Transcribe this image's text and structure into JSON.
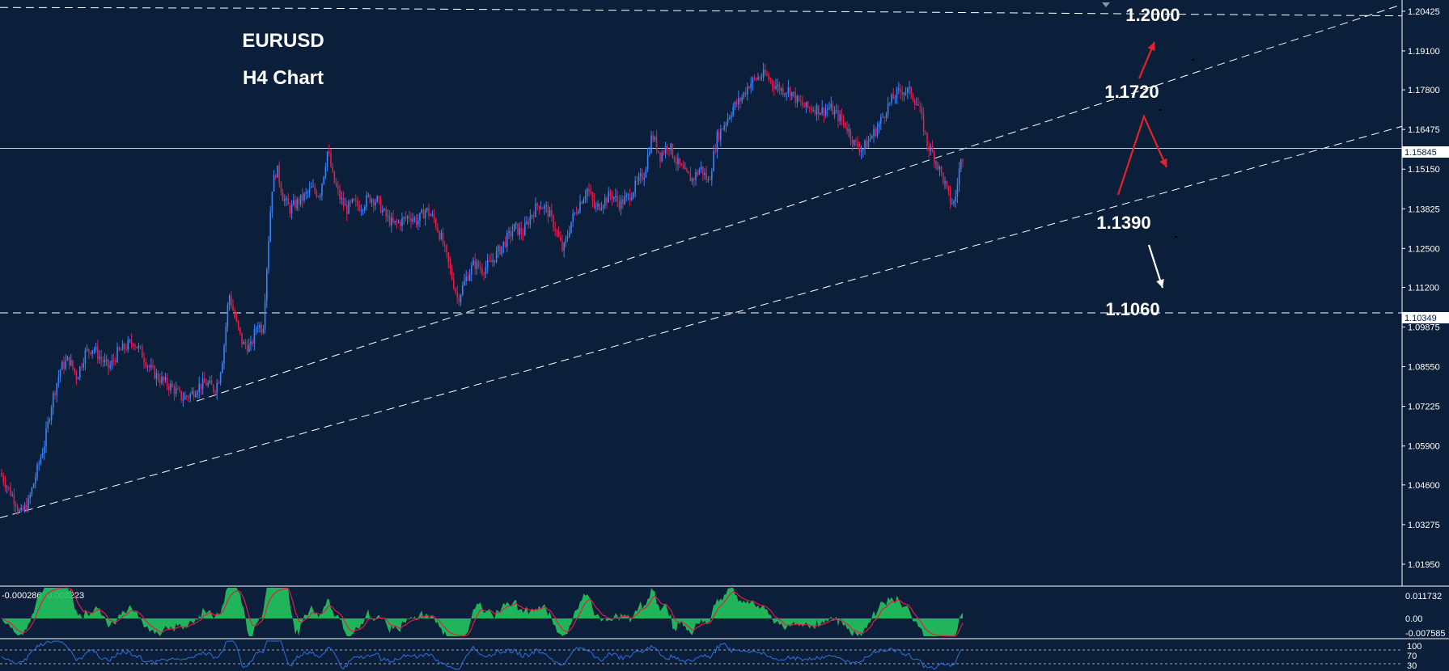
{
  "chart_data": {
    "type": "candlestick",
    "symbol": "EURUSD",
    "timeframe": "H4 Chart",
    "price_axis_ticks": [
      "1.20425",
      "1.19100",
      "1.17800",
      "1.16475",
      "1.15150",
      "1.13825",
      "1.12500",
      "1.11200",
      "1.09875",
      "1.08550",
      "1.07225",
      "1.05900",
      "1.04600",
      "1.03275",
      "1.01950"
    ],
    "ylim": [
      1.0122,
      1.208
    ],
    "current_price": {
      "label": "1.15845",
      "value": 1.15845
    },
    "marked_level": {
      "label": "1.10349",
      "value": 1.10349
    },
    "levels": [
      {
        "label": "1.2000",
        "value": 1.2
      },
      {
        "label": "1.1720",
        "value": 1.172
      },
      {
        "label": "1.1390",
        "value": 1.139
      },
      {
        "label": "1.1060",
        "value": 1.106
      }
    ],
    "price_path": [
      [
        0,
        1.05
      ],
      [
        10,
        1.045
      ],
      [
        20,
        1.04
      ],
      [
        25,
        1.036
      ],
      [
        35,
        1.04
      ],
      [
        45,
        1.05
      ],
      [
        55,
        1.06
      ],
      [
        65,
        1.075
      ],
      [
        75,
        1.085
      ],
      [
        85,
        1.088
      ],
      [
        95,
        1.082
      ],
      [
        105,
        1.09
      ],
      [
        115,
        1.092
      ],
      [
        125,
        1.088
      ],
      [
        135,
        1.085
      ],
      [
        145,
        1.09
      ],
      [
        155,
        1.092
      ],
      [
        165,
        1.094
      ],
      [
        175,
        1.09
      ],
      [
        185,
        1.085
      ],
      [
        195,
        1.082
      ],
      [
        205,
        1.08
      ],
      [
        215,
        1.078
      ],
      [
        225,
        1.075
      ],
      [
        235,
        1.076
      ],
      [
        245,
        1.079
      ],
      [
        255,
        1.08
      ],
      [
        265,
        1.078
      ],
      [
        270,
        1.081
      ],
      [
        276,
        1.09
      ],
      [
        283,
        1.11
      ],
      [
        292,
        1.1
      ],
      [
        300,
        1.093
      ],
      [
        310,
        1.092
      ],
      [
        318,
        1.1
      ],
      [
        325,
        1.098
      ],
      [
        330,
        1.12
      ],
      [
        336,
        1.145
      ],
      [
        342,
        1.152
      ],
      [
        350,
        1.142
      ],
      [
        358,
        1.138
      ],
      [
        366,
        1.14
      ],
      [
        375,
        1.142
      ],
      [
        385,
        1.145
      ],
      [
        395,
        1.143
      ],
      [
        400,
        1.15
      ],
      [
        405,
        1.158
      ],
      [
        412,
        1.148
      ],
      [
        420,
        1.142
      ],
      [
        428,
        1.138
      ],
      [
        436,
        1.14
      ],
      [
        446,
        1.139
      ],
      [
        456,
        1.142
      ],
      [
        466,
        1.141
      ],
      [
        476,
        1.136
      ],
      [
        486,
        1.133
      ],
      [
        496,
        1.134
      ],
      [
        506,
        1.136
      ],
      [
        516,
        1.134
      ],
      [
        526,
        1.138
      ],
      [
        536,
        1.135
      ],
      [
        546,
        1.128
      ],
      [
        556,
        1.118
      ],
      [
        566,
        1.108
      ],
      [
        576,
        1.115
      ],
      [
        586,
        1.12
      ],
      [
        596,
        1.118
      ],
      [
        606,
        1.12
      ],
      [
        616,
        1.124
      ],
      [
        626,
        1.128
      ],
      [
        636,
        1.132
      ],
      [
        646,
        1.13
      ],
      [
        656,
        1.136
      ],
      [
        666,
        1.14
      ],
      [
        676,
        1.138
      ],
      [
        686,
        1.132
      ],
      [
        696,
        1.124
      ],
      [
        706,
        1.134
      ],
      [
        716,
        1.14
      ],
      [
        726,
        1.145
      ],
      [
        736,
        1.138
      ],
      [
        746,
        1.141
      ],
      [
        756,
        1.143
      ],
      [
        766,
        1.14
      ],
      [
        776,
        1.142
      ],
      [
        786,
        1.146
      ],
      [
        796,
        1.15
      ],
      [
        806,
        1.163
      ],
      [
        816,
        1.156
      ],
      [
        826,
        1.16
      ],
      [
        836,
        1.154
      ],
      [
        846,
        1.15
      ],
      [
        856,
        1.148
      ],
      [
        866,
        1.152
      ],
      [
        876,
        1.147
      ],
      [
        886,
        1.162
      ],
      [
        896,
        1.167
      ],
      [
        906,
        1.172
      ],
      [
        916,
        1.175
      ],
      [
        926,
        1.18
      ],
      [
        936,
        1.182
      ],
      [
        946,
        1.183
      ],
      [
        956,
        1.18
      ],
      [
        966,
        1.178
      ],
      [
        976,
        1.178
      ],
      [
        986,
        1.174
      ],
      [
        996,
        1.172
      ],
      [
        1006,
        1.172
      ],
      [
        1016,
        1.171
      ],
      [
        1026,
        1.172
      ],
      [
        1036,
        1.169
      ],
      [
        1046,
        1.166
      ],
      [
        1056,
        1.16
      ],
      [
        1066,
        1.158
      ],
      [
        1076,
        1.162
      ],
      [
        1086,
        1.166
      ],
      [
        1096,
        1.172
      ],
      [
        1106,
        1.176
      ],
      [
        1116,
        1.178
      ],
      [
        1126,
        1.177
      ],
      [
        1136,
        1.172
      ],
      [
        1146,
        1.16
      ],
      [
        1156,
        1.155
      ],
      [
        1166,
        1.148
      ],
      [
        1174,
        1.141
      ],
      [
        1180,
        1.14
      ],
      [
        1186,
        1.152
      ],
      [
        1192,
        1.158
      ]
    ],
    "macd_label": "-0.000286 -0.003223",
    "macd_ticks": [
      "0.011732",
      "0.00",
      "-0.007585"
    ],
    "rsi_ticks": [
      "100",
      "70",
      "30"
    ]
  }
}
